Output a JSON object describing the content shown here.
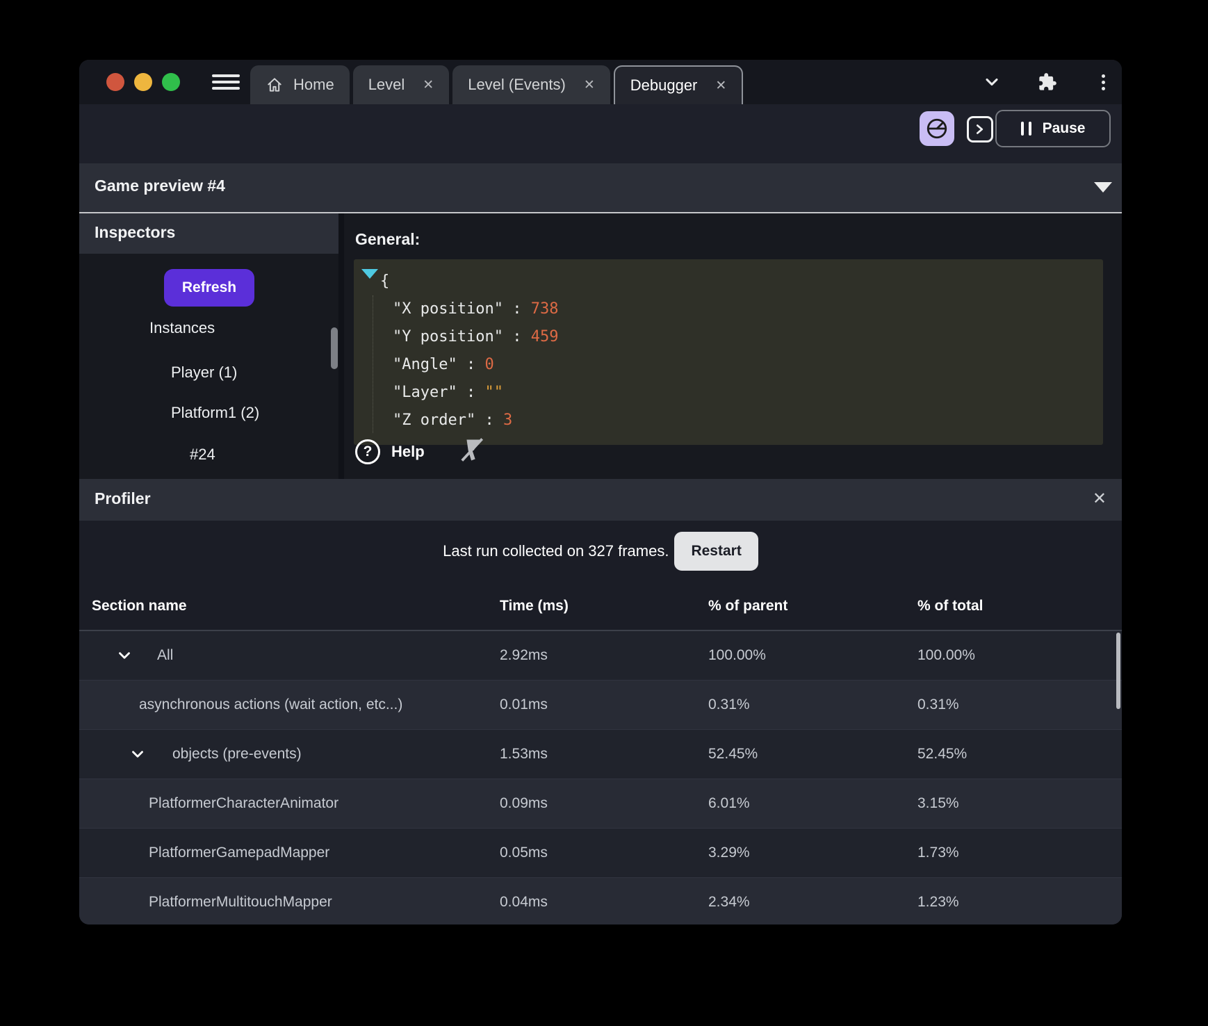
{
  "tabs": [
    {
      "label": "Home",
      "icon": "home",
      "closable": false,
      "active": false
    },
    {
      "label": "Level",
      "icon": null,
      "closable": true,
      "active": false
    },
    {
      "label": "Level (Events)",
      "icon": null,
      "closable": true,
      "active": false
    },
    {
      "label": "Debugger",
      "icon": null,
      "closable": true,
      "active": true
    }
  ],
  "toolbar": {
    "pause_label": "Pause"
  },
  "preview": {
    "title": "Game preview #4"
  },
  "inspectors": {
    "title": "Inspectors",
    "refresh_label": "Refresh",
    "items": [
      {
        "label": "Instances",
        "depth": 0
      },
      {
        "label": "Player (1)",
        "depth": 1
      },
      {
        "label": "Platform1 (2)",
        "depth": 1
      },
      {
        "label": "#24",
        "depth": 2
      }
    ]
  },
  "general": {
    "title": "General:",
    "help_label": "Help",
    "object": {
      "open_brace": "{",
      "pairs": [
        {
          "key": "X position",
          "value": "738",
          "type": "num"
        },
        {
          "key": "Y position",
          "value": "459",
          "type": "num"
        },
        {
          "key": "Angle",
          "value": "0",
          "type": "num"
        },
        {
          "key": "Layer",
          "value": "\"\"",
          "type": "str"
        },
        {
          "key": "Z order",
          "value": "3",
          "type": "num"
        }
      ]
    }
  },
  "profiler": {
    "title": "Profiler",
    "status_text": "Last run collected on 327 frames.",
    "restart_label": "Restart",
    "table": {
      "headers": [
        "Section name",
        "Time (ms)",
        "% of parent",
        "% of total"
      ],
      "rows": [
        {
          "name": "All",
          "time": "2.92ms",
          "parent": "100.00%",
          "total": "100.00%",
          "chevron": true,
          "indent": 0,
          "shade": "dark"
        },
        {
          "name": "asynchronous actions (wait action, etc...)",
          "time": "0.01ms",
          "parent": "0.31%",
          "total": "0.31%",
          "chevron": false,
          "indent": 1,
          "shade": "light"
        },
        {
          "name": "objects (pre-events)",
          "time": "1.53ms",
          "parent": "52.45%",
          "total": "52.45%",
          "chevron": true,
          "indent": 1,
          "shade": "dark"
        },
        {
          "name": "PlatformerCharacterAnimator",
          "time": "0.09ms",
          "parent": "6.01%",
          "total": "3.15%",
          "chevron": false,
          "indent": 2,
          "shade": "light"
        },
        {
          "name": "PlatformerGamepadMapper",
          "time": "0.05ms",
          "parent": "3.29%",
          "total": "1.73%",
          "chevron": false,
          "indent": 2,
          "shade": "dark"
        },
        {
          "name": "PlatformerMultitouchMapper",
          "time": "0.04ms",
          "parent": "2.34%",
          "total": "1.23%",
          "chevron": false,
          "indent": 2,
          "shade": "light"
        }
      ]
    }
  },
  "colors": {
    "accent_purple": "#5b2fd9",
    "gauge_button_bg": "#c9bdf4",
    "row_dark": "#20232c",
    "row_light": "#282b35",
    "code_number": "#dd6a45",
    "code_string": "#dfa03b",
    "expand_triangle": "#4ec9e1"
  }
}
